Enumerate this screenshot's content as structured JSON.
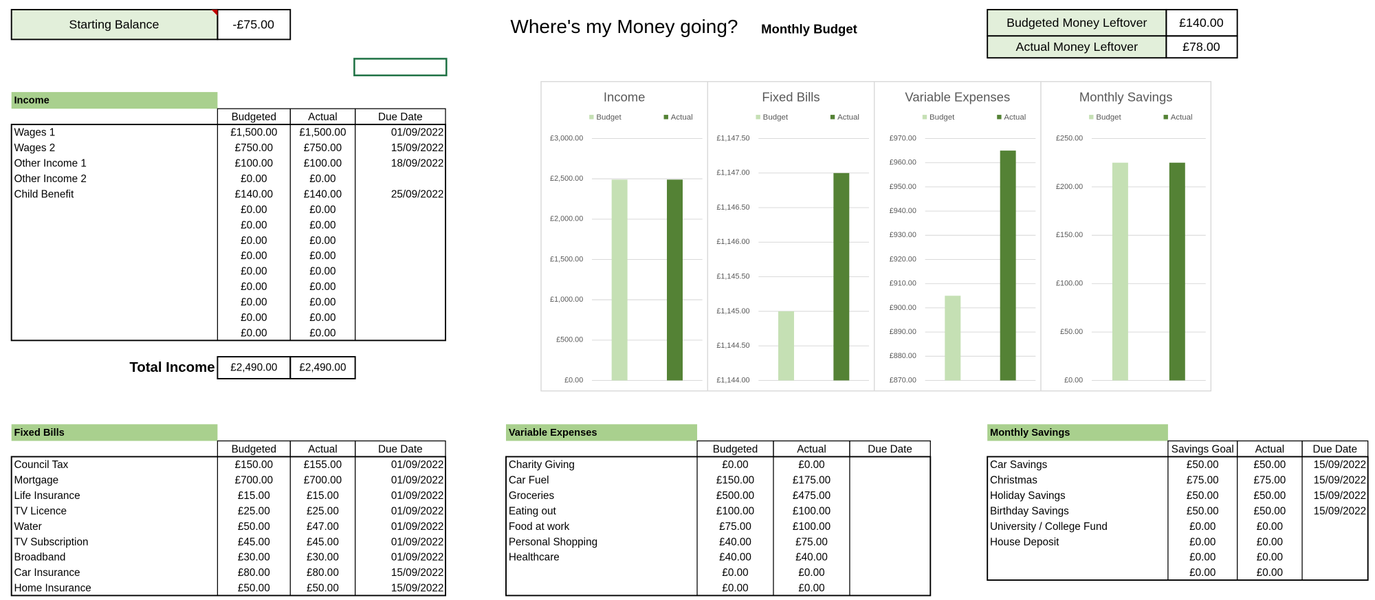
{
  "starting_balance": {
    "label": "Starting Balance",
    "value": "-£75.00"
  },
  "header": {
    "title": "Where's my Money going?",
    "subtitle": "Monthly Budget"
  },
  "leftover": {
    "rows": [
      [
        "Budgeted Money Leftover",
        "£140.00"
      ],
      [
        "Actual Money Leftover",
        "£78.00"
      ]
    ]
  },
  "income": {
    "title": "Income",
    "columns": [
      "Budgeted",
      "Actual",
      "Due Date"
    ],
    "rows": [
      [
        "Wages 1",
        "£1,500.00",
        "£1,500.00",
        "01/09/2022"
      ],
      [
        "Wages 2",
        "£750.00",
        "£750.00",
        "15/09/2022"
      ],
      [
        "Other Income 1",
        "£100.00",
        "£100.00",
        "18/09/2022"
      ],
      [
        "Other Income 2",
        "£0.00",
        "£0.00",
        null
      ],
      [
        "Child Benefit",
        "£140.00",
        "£140.00",
        "25/09/2022"
      ],
      [
        null,
        "£0.00",
        "£0.00",
        null
      ],
      [
        null,
        "£0.00",
        "£0.00",
        null
      ],
      [
        null,
        "£0.00",
        "£0.00",
        null
      ],
      [
        null,
        "£0.00",
        "£0.00",
        null
      ],
      [
        null,
        "£0.00",
        "£0.00",
        null
      ],
      [
        null,
        "£0.00",
        "£0.00",
        null
      ],
      [
        null,
        "£0.00",
        "£0.00",
        null
      ],
      [
        null,
        "£0.00",
        "£0.00",
        null
      ],
      [
        null,
        "£0.00",
        "£0.00",
        null
      ]
    ],
    "total_label": "Total Income",
    "totals": [
      "£2,490.00",
      "£2,490.00"
    ]
  },
  "fixed_bills": {
    "title": "Fixed Bills",
    "columns": [
      "Budgeted",
      "Actual",
      "Due Date"
    ],
    "rows": [
      [
        "Council Tax",
        "£150.00",
        "£155.00",
        "01/09/2022"
      ],
      [
        "Mortgage",
        "£700.00",
        "£700.00",
        "01/09/2022"
      ],
      [
        "Life Insurance",
        "£15.00",
        "£15.00",
        "01/09/2022"
      ],
      [
        "TV Licence",
        "£25.00",
        "£25.00",
        "01/09/2022"
      ],
      [
        "Water",
        "£50.00",
        "£47.00",
        "01/09/2022"
      ],
      [
        "TV Subscription",
        "£45.00",
        "£45.00",
        "01/09/2022"
      ],
      [
        "Broadband",
        "£30.00",
        "£30.00",
        "01/09/2022"
      ],
      [
        "Car Insurance",
        "£80.00",
        "£80.00",
        "15/09/2022"
      ],
      [
        "Home Insurance",
        "£50.00",
        "£50.00",
        "15/09/2022"
      ]
    ]
  },
  "variable_expenses": {
    "title": "Variable Expenses",
    "columns": [
      "Budgeted",
      "Actual",
      "Due Date"
    ],
    "rows": [
      [
        "Charity Giving",
        "£0.00",
        "£0.00",
        null
      ],
      [
        "Car Fuel",
        "£150.00",
        "£175.00",
        null
      ],
      [
        "Groceries",
        "£500.00",
        "£475.00",
        null
      ],
      [
        "Eating out",
        "£100.00",
        "£100.00",
        null
      ],
      [
        "Food at work",
        "£75.00",
        "£100.00",
        null
      ],
      [
        "Personal Shopping",
        "£40.00",
        "£75.00",
        null
      ],
      [
        "Healthcare",
        "£40.00",
        "£40.00",
        null
      ],
      [
        null,
        "£0.00",
        "£0.00",
        null
      ],
      [
        null,
        "£0.00",
        "£0.00",
        null
      ]
    ]
  },
  "monthly_savings": {
    "title": "Monthly Savings",
    "columns": [
      "Savings Goal",
      "Actual",
      "Due Date"
    ],
    "rows": [
      [
        "Car Savings",
        "£50.00",
        "£50.00",
        "15/09/2022"
      ],
      [
        "Christmas",
        "£75.00",
        "£75.00",
        "15/09/2022"
      ],
      [
        "Holiday Savings",
        "£50.00",
        "£50.00",
        "15/09/2022"
      ],
      [
        "Birthday Savings",
        "£50.00",
        "£50.00",
        "15/09/2022"
      ],
      [
        "University / College Fund",
        "£0.00",
        "£0.00",
        null
      ],
      [
        "House Deposit",
        "£0.00",
        "£0.00",
        null
      ],
      [
        null,
        "£0.00",
        "£0.00",
        null
      ],
      [
        null,
        "£0.00",
        "£0.00",
        null
      ]
    ]
  },
  "chart_data": [
    {
      "type": "bar",
      "title": "Income",
      "series": [
        {
          "name": "Budget",
          "color": "#c5e0b4",
          "values": [
            2490
          ]
        },
        {
          "name": "Actual",
          "color": "#548235",
          "values": [
            2490
          ]
        }
      ],
      "ylim": [
        0,
        3000
      ],
      "yticks": [
        {
          "value": 0,
          "label": "£0.00"
        },
        {
          "value": 500,
          "label": "£500.00"
        },
        {
          "value": 1000,
          "label": "£1,000.00"
        },
        {
          "value": 1500,
          "label": "£1,500.00"
        },
        {
          "value": 2000,
          "label": "£2,000.00"
        },
        {
          "value": 2500,
          "label": "£2,500.00"
        },
        {
          "value": 3000,
          "label": "£3,000.00"
        }
      ],
      "grid": true
    },
    {
      "type": "bar",
      "title": "Fixed Bills",
      "series": [
        {
          "name": "Budget",
          "color": "#c5e0b4",
          "values": [
            1145
          ]
        },
        {
          "name": "Actual",
          "color": "#548235",
          "values": [
            1147
          ]
        }
      ],
      "ylim": [
        1144,
        1147.5
      ],
      "yticks": [
        {
          "value": 1144,
          "label": "£1,144.00"
        },
        {
          "value": 1144.5,
          "label": "£1,144.50"
        },
        {
          "value": 1145,
          "label": "£1,145.00"
        },
        {
          "value": 1145.5,
          "label": "£1,145.50"
        },
        {
          "value": 1146,
          "label": "£1,146.00"
        },
        {
          "value": 1146.5,
          "label": "£1,146.50"
        },
        {
          "value": 1147,
          "label": "£1,147.00"
        },
        {
          "value": 1147.5,
          "label": "£1,147.50"
        }
      ],
      "grid": true
    },
    {
      "type": "bar",
      "title": "Variable Expenses",
      "series": [
        {
          "name": "Budget",
          "color": "#c5e0b4",
          "values": [
            905
          ]
        },
        {
          "name": "Actual",
          "color": "#548235",
          "values": [
            965
          ]
        }
      ],
      "ylim": [
        870,
        970
      ],
      "yticks": [
        {
          "value": 870,
          "label": "£870.00"
        },
        {
          "value": 880,
          "label": "£880.00"
        },
        {
          "value": 890,
          "label": "£890.00"
        },
        {
          "value": 900,
          "label": "£900.00"
        },
        {
          "value": 910,
          "label": "£910.00"
        },
        {
          "value": 920,
          "label": "£920.00"
        },
        {
          "value": 930,
          "label": "£930.00"
        },
        {
          "value": 940,
          "label": "£940.00"
        },
        {
          "value": 950,
          "label": "£950.00"
        },
        {
          "value": 960,
          "label": "£960.00"
        },
        {
          "value": 970,
          "label": "£970.00"
        }
      ],
      "grid": true
    },
    {
      "type": "bar",
      "title": "Monthly Savings",
      "series": [
        {
          "name": "Budget",
          "color": "#c5e0b4",
          "values": [
            225
          ]
        },
        {
          "name": "Actual",
          "color": "#548235",
          "values": [
            225
          ]
        }
      ],
      "ylim": [
        0,
        250
      ],
      "yticks": [
        {
          "value": 0,
          "label": "£0.00"
        },
        {
          "value": 50,
          "label": "£50.00"
        },
        {
          "value": 100,
          "label": "£100.00"
        },
        {
          "value": 150,
          "label": "£150.00"
        },
        {
          "value": 200,
          "label": "£200.00"
        },
        {
          "value": 250,
          "label": "£250.00"
        }
      ],
      "grid": true
    }
  ]
}
